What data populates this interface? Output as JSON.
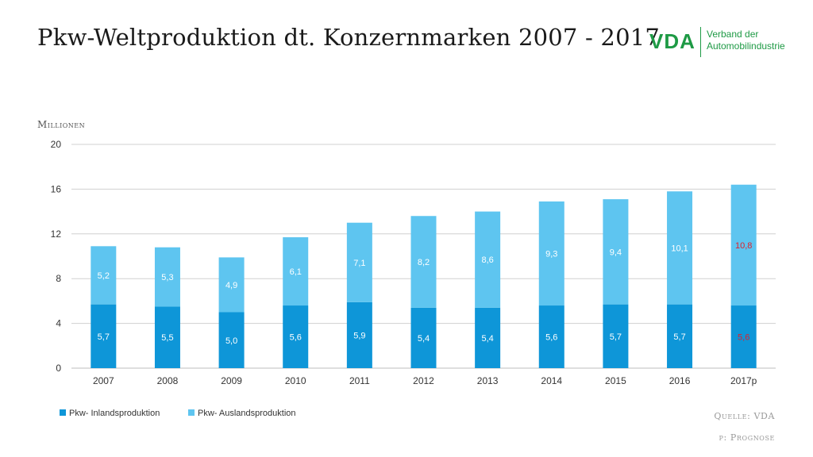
{
  "title": "Pkw-Weltproduktion dt. Konzernmarken  2007 - 2017",
  "logo": {
    "mark": "VDA",
    "line1": "Verband der",
    "line2": "Automobilindustrie",
    "color": "#1e9a45"
  },
  "unit_label": "Millionen",
  "footer": {
    "source": "Quelle: VDA",
    "note": "p: Prognose"
  },
  "chart_data": {
    "type": "bar",
    "stacked": true,
    "categories": [
      "2007",
      "2008",
      "2009",
      "2010",
      "2011",
      "2012",
      "2013",
      "2014",
      "2015",
      "2016",
      "2017p"
    ],
    "series": [
      {
        "name": "Pkw- Inlandsproduktion",
        "color": "#0e96d8",
        "values": [
          5.7,
          5.5,
          5.0,
          5.6,
          5.9,
          5.4,
          5.4,
          5.6,
          5.7,
          5.7,
          5.6
        ],
        "labels": [
          "5,7",
          "5,5",
          "5,0",
          "5,6",
          "5,9",
          "5,4",
          "5,4",
          "5,6",
          "5,7",
          "5,7",
          "5,6"
        ]
      },
      {
        "name": "Pkw- Auslandsproduktion",
        "color": "#5ec5f0",
        "values": [
          5.2,
          5.3,
          4.9,
          6.1,
          7.1,
          8.2,
          8.6,
          9.3,
          9.4,
          10.1,
          10.8
        ],
        "labels": [
          "5,2",
          "5,3",
          "4,9",
          "6,1",
          "7,1",
          "8,2",
          "8,6",
          "9,3",
          "9,4",
          "10,1",
          "10,8"
        ]
      }
    ],
    "highlight_label_color": "#e0202a",
    "ylim": [
      0,
      20
    ],
    "yticks": [
      "0",
      "4",
      "8",
      "12",
      "16",
      "20"
    ],
    "grid": true,
    "legend_position": "bottom-left"
  }
}
